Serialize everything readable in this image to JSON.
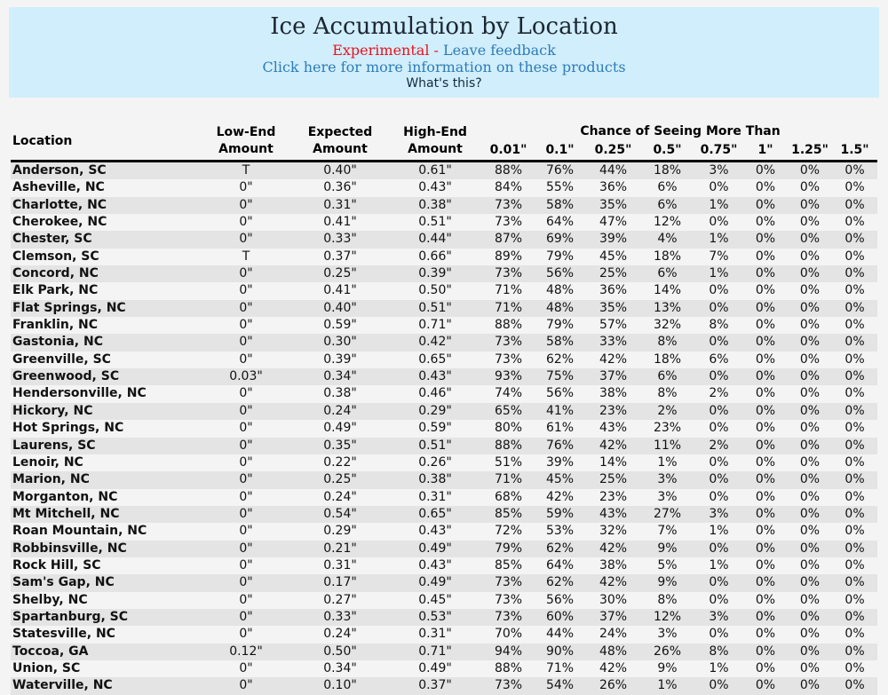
{
  "header": {
    "title": "Ice Accumulation by Location",
    "experimental_label": "Experimental",
    "separator": " - ",
    "feedback_link": "Leave feedback",
    "info_link": "Click here for more information on these products",
    "whats_this_link": "What's this?",
    "colors": {
      "box_background": "#d1eefc",
      "experimental_red": "#e8131e",
      "link_blue": "#2d7cb7",
      "whats_this_text": "#122a3f",
      "title_text": "#1b2631"
    }
  },
  "table": {
    "columns": {
      "location": "Location",
      "low_end": "Low-End Amount",
      "expected": "Expected Amount",
      "high_end": "High-End Amount",
      "chance_group": "Chance of Seeing More Than",
      "thresholds": [
        "0.01\"",
        "0.1\"",
        "0.25\"",
        "0.5\"",
        "0.75\"",
        "1\"",
        "1.25\"",
        "1.5\""
      ]
    },
    "colors": {
      "stripe_row": "#e4e4e4",
      "plain_row": "#f5f4f4",
      "header_rule": "#000000",
      "text": "#121212"
    },
    "rows": [
      {
        "location": "Anderson, SC",
        "low": "T",
        "expected": "0.40\"",
        "high": "0.61\"",
        "chances": [
          "88%",
          "76%",
          "44%",
          "18%",
          "3%",
          "0%",
          "0%",
          "0%"
        ]
      },
      {
        "location": "Asheville, NC",
        "low": "0\"",
        "expected": "0.36\"",
        "high": "0.43\"",
        "chances": [
          "84%",
          "55%",
          "36%",
          "6%",
          "0%",
          "0%",
          "0%",
          "0%"
        ]
      },
      {
        "location": "Charlotte, NC",
        "low": "0\"",
        "expected": "0.31\"",
        "high": "0.38\"",
        "chances": [
          "73%",
          "58%",
          "35%",
          "6%",
          "1%",
          "0%",
          "0%",
          "0%"
        ]
      },
      {
        "location": "Cherokee, NC",
        "low": "0\"",
        "expected": "0.41\"",
        "high": "0.51\"",
        "chances": [
          "73%",
          "64%",
          "47%",
          "12%",
          "0%",
          "0%",
          "0%",
          "0%"
        ]
      },
      {
        "location": "Chester, SC",
        "low": "0\"",
        "expected": "0.33\"",
        "high": "0.44\"",
        "chances": [
          "87%",
          "69%",
          "39%",
          "4%",
          "1%",
          "0%",
          "0%",
          "0%"
        ]
      },
      {
        "location": "Clemson, SC",
        "low": "T",
        "expected": "0.37\"",
        "high": "0.66\"",
        "chances": [
          "89%",
          "79%",
          "45%",
          "18%",
          "7%",
          "0%",
          "0%",
          "0%"
        ]
      },
      {
        "location": "Concord, NC",
        "low": "0\"",
        "expected": "0.25\"",
        "high": "0.39\"",
        "chances": [
          "73%",
          "56%",
          "25%",
          "6%",
          "1%",
          "0%",
          "0%",
          "0%"
        ]
      },
      {
        "location": "Elk Park, NC",
        "low": "0\"",
        "expected": "0.41\"",
        "high": "0.50\"",
        "chances": [
          "71%",
          "48%",
          "36%",
          "14%",
          "0%",
          "0%",
          "0%",
          "0%"
        ]
      },
      {
        "location": "Flat Springs, NC",
        "low": "0\"",
        "expected": "0.40\"",
        "high": "0.51\"",
        "chances": [
          "71%",
          "48%",
          "35%",
          "13%",
          "0%",
          "0%",
          "0%",
          "0%"
        ]
      },
      {
        "location": "Franklin, NC",
        "low": "0\"",
        "expected": "0.59\"",
        "high": "0.71\"",
        "chances": [
          "88%",
          "79%",
          "57%",
          "32%",
          "8%",
          "0%",
          "0%",
          "0%"
        ]
      },
      {
        "location": "Gastonia, NC",
        "low": "0\"",
        "expected": "0.30\"",
        "high": "0.42\"",
        "chances": [
          "73%",
          "58%",
          "33%",
          "8%",
          "0%",
          "0%",
          "0%",
          "0%"
        ]
      },
      {
        "location": "Greenville, SC",
        "low": "0\"",
        "expected": "0.39\"",
        "high": "0.65\"",
        "chances": [
          "73%",
          "62%",
          "42%",
          "18%",
          "6%",
          "0%",
          "0%",
          "0%"
        ]
      },
      {
        "location": "Greenwood, SC",
        "low": "0.03\"",
        "expected": "0.34\"",
        "high": "0.43\"",
        "chances": [
          "93%",
          "75%",
          "37%",
          "6%",
          "0%",
          "0%",
          "0%",
          "0%"
        ]
      },
      {
        "location": "Hendersonville, NC",
        "low": "0\"",
        "expected": "0.38\"",
        "high": "0.46\"",
        "chances": [
          "74%",
          "56%",
          "38%",
          "8%",
          "2%",
          "0%",
          "0%",
          "0%"
        ]
      },
      {
        "location": "Hickory, NC",
        "low": "0\"",
        "expected": "0.24\"",
        "high": "0.29\"",
        "chances": [
          "65%",
          "41%",
          "23%",
          "2%",
          "0%",
          "0%",
          "0%",
          "0%"
        ]
      },
      {
        "location": "Hot Springs, NC",
        "low": "0\"",
        "expected": "0.49\"",
        "high": "0.59\"",
        "chances": [
          "80%",
          "61%",
          "43%",
          "23%",
          "0%",
          "0%",
          "0%",
          "0%"
        ]
      },
      {
        "location": "Laurens, SC",
        "low": "0\"",
        "expected": "0.35\"",
        "high": "0.51\"",
        "chances": [
          "88%",
          "76%",
          "42%",
          "11%",
          "2%",
          "0%",
          "0%",
          "0%"
        ]
      },
      {
        "location": "Lenoir, NC",
        "low": "0\"",
        "expected": "0.22\"",
        "high": "0.26\"",
        "chances": [
          "51%",
          "39%",
          "14%",
          "1%",
          "0%",
          "0%",
          "0%",
          "0%"
        ]
      },
      {
        "location": "Marion, NC",
        "low": "0\"",
        "expected": "0.25\"",
        "high": "0.38\"",
        "chances": [
          "71%",
          "45%",
          "25%",
          "3%",
          "0%",
          "0%",
          "0%",
          "0%"
        ]
      },
      {
        "location": "Morganton, NC",
        "low": "0\"",
        "expected": "0.24\"",
        "high": "0.31\"",
        "chances": [
          "68%",
          "42%",
          "23%",
          "3%",
          "0%",
          "0%",
          "0%",
          "0%"
        ]
      },
      {
        "location": "Mt Mitchell, NC",
        "low": "0\"",
        "expected": "0.54\"",
        "high": "0.65\"",
        "chances": [
          "85%",
          "59%",
          "43%",
          "27%",
          "3%",
          "0%",
          "0%",
          "0%"
        ]
      },
      {
        "location": "Roan Mountain, NC",
        "low": "0\"",
        "expected": "0.29\"",
        "high": "0.43\"",
        "chances": [
          "72%",
          "53%",
          "32%",
          "7%",
          "1%",
          "0%",
          "0%",
          "0%"
        ]
      },
      {
        "location": "Robbinsville, NC",
        "low": "0\"",
        "expected": "0.21\"",
        "high": "0.49\"",
        "chances": [
          "79%",
          "62%",
          "42%",
          "9%",
          "0%",
          "0%",
          "0%",
          "0%"
        ]
      },
      {
        "location": "Rock Hill, SC",
        "low": "0\"",
        "expected": "0.31\"",
        "high": "0.43\"",
        "chances": [
          "85%",
          "64%",
          "38%",
          "5%",
          "1%",
          "0%",
          "0%",
          "0%"
        ]
      },
      {
        "location": "Sam's Gap, NC",
        "low": "0\"",
        "expected": "0.17\"",
        "high": "0.49\"",
        "chances": [
          "73%",
          "62%",
          "42%",
          "9%",
          "0%",
          "0%",
          "0%",
          "0%"
        ]
      },
      {
        "location": "Shelby, NC",
        "low": "0\"",
        "expected": "0.27\"",
        "high": "0.45\"",
        "chances": [
          "73%",
          "56%",
          "30%",
          "8%",
          "0%",
          "0%",
          "0%",
          "0%"
        ]
      },
      {
        "location": "Spartanburg, SC",
        "low": "0\"",
        "expected": "0.33\"",
        "high": "0.53\"",
        "chances": [
          "73%",
          "60%",
          "37%",
          "12%",
          "3%",
          "0%",
          "0%",
          "0%"
        ]
      },
      {
        "location": "Statesville, NC",
        "low": "0\"",
        "expected": "0.24\"",
        "high": "0.31\"",
        "chances": [
          "70%",
          "44%",
          "24%",
          "3%",
          "0%",
          "0%",
          "0%",
          "0%"
        ]
      },
      {
        "location": "Toccoa, GA",
        "low": "0.12\"",
        "expected": "0.50\"",
        "high": "0.71\"",
        "chances": [
          "94%",
          "90%",
          "48%",
          "26%",
          "8%",
          "0%",
          "0%",
          "0%"
        ]
      },
      {
        "location": "Union, SC",
        "low": "0\"",
        "expected": "0.34\"",
        "high": "0.49\"",
        "chances": [
          "88%",
          "71%",
          "42%",
          "9%",
          "1%",
          "0%",
          "0%",
          "0%"
        ]
      },
      {
        "location": "Waterville, NC",
        "low": "0\"",
        "expected": "0.10\"",
        "high": "0.37\"",
        "chances": [
          "73%",
          "54%",
          "26%",
          "1%",
          "0%",
          "0%",
          "0%",
          "0%"
        ]
      }
    ]
  }
}
